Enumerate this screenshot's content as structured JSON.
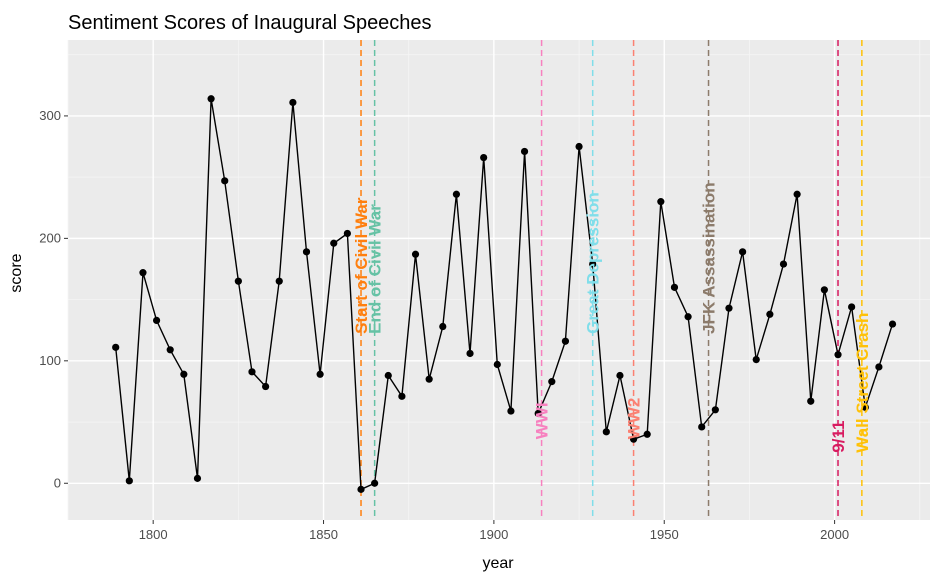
{
  "chart_data": {
    "type": "line",
    "title": "Sentiment Scores of Inaugural Speeches",
    "xlabel": "year",
    "ylabel": "score",
    "xlim": [
      1775,
      2028
    ],
    "ylim": [
      -30,
      362
    ],
    "x_ticks": [
      1800,
      1850,
      1900,
      1950,
      2000
    ],
    "y_ticks": [
      0,
      100,
      200,
      300
    ],
    "grid": true,
    "series": [
      {
        "color": "#000000",
        "points": [
          [
            1789,
            111
          ],
          [
            1793,
            2
          ],
          [
            1797,
            172
          ],
          [
            1801,
            133
          ],
          [
            1805,
            109
          ],
          [
            1809,
            89
          ],
          [
            1813,
            4
          ],
          [
            1817,
            314
          ],
          [
            1821,
            247
          ],
          [
            1825,
            165
          ],
          [
            1829,
            91
          ],
          [
            1833,
            79
          ],
          [
            1837,
            165
          ],
          [
            1841,
            311
          ],
          [
            1845,
            189
          ],
          [
            1849,
            89
          ],
          [
            1853,
            196
          ],
          [
            1857,
            204
          ],
          [
            1861,
            -5
          ],
          [
            1865,
            0
          ],
          [
            1869,
            88
          ],
          [
            1873,
            71
          ],
          [
            1877,
            187
          ],
          [
            1881,
            85
          ],
          [
            1885,
            128
          ],
          [
            1889,
            236
          ],
          [
            1893,
            106
          ],
          [
            1897,
            266
          ],
          [
            1901,
            97
          ],
          [
            1905,
            59
          ],
          [
            1909,
            271
          ],
          [
            1913,
            57
          ],
          [
            1917,
            83
          ],
          [
            1921,
            116
          ],
          [
            1925,
            275
          ],
          [
            1929,
            179
          ],
          [
            1933,
            42
          ],
          [
            1937,
            88
          ],
          [
            1941,
            36
          ],
          [
            1945,
            40
          ],
          [
            1949,
            230
          ],
          [
            1953,
            160
          ],
          [
            1957,
            136
          ],
          [
            1961,
            46
          ],
          [
            1965,
            60
          ],
          [
            1969,
            143
          ],
          [
            1973,
            189
          ],
          [
            1977,
            101
          ],
          [
            1981,
            138
          ],
          [
            1985,
            179
          ],
          [
            1989,
            236
          ],
          [
            1993,
            67
          ],
          [
            1997,
            158
          ],
          [
            2001,
            105
          ],
          [
            2005,
            144
          ],
          [
            2009,
            62
          ],
          [
            2013,
            95
          ],
          [
            2017,
            130
          ]
        ]
      }
    ],
    "events": [
      {
        "label": "Start of Civil War",
        "year": 1861,
        "color": "#FF7F0E"
      },
      {
        "label": "End of Civil War",
        "year": 1865,
        "color": "#66C2A5"
      },
      {
        "label": "WWI",
        "year": 1914,
        "color": "#F781BF"
      },
      {
        "label": "Great Depression",
        "year": 1929,
        "color": "#80DEEA"
      },
      {
        "label": "WW2",
        "year": 1941,
        "color": "#FB8072"
      },
      {
        "label": "JFK Assassination",
        "year": 1963,
        "color": "#8C7B6B"
      },
      {
        "label": "9/11",
        "year": 2001,
        "color": "#D81B60"
      },
      {
        "label": "Wall Street Crash",
        "year": 2008,
        "color": "#FFC107"
      }
    ]
  }
}
